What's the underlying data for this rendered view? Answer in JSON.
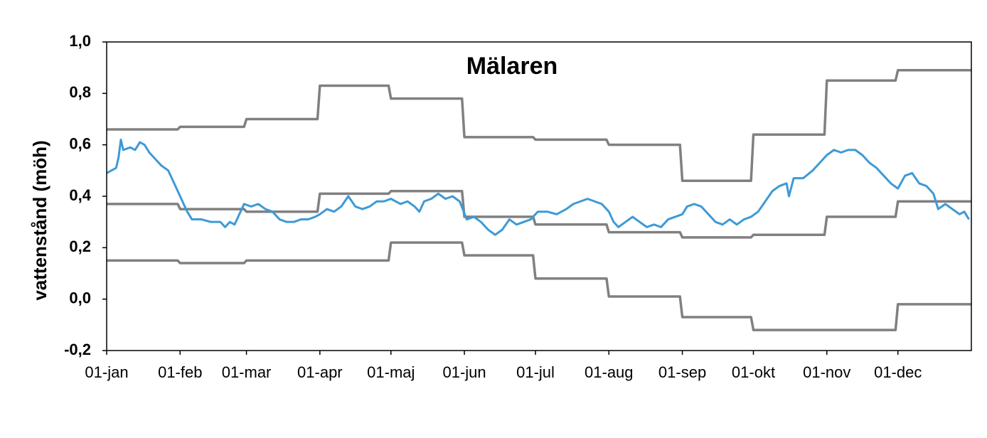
{
  "chart_data": {
    "type": "line",
    "title": "Mälaren",
    "y_label": "vattenstånd (möh)",
    "xlim": [
      0,
      365
    ],
    "ylim": [
      -0.2,
      1.0
    ],
    "xticks": [
      {
        "value": 0,
        "label": "01-jan"
      },
      {
        "value": 31,
        "label": "01-feb"
      },
      {
        "value": 59,
        "label": "01-mar"
      },
      {
        "value": 90,
        "label": "01-apr"
      },
      {
        "value": 120,
        "label": "01-maj"
      },
      {
        "value": 151,
        "label": "01-jun"
      },
      {
        "value": 181,
        "label": "01-jul"
      },
      {
        "value": 212,
        "label": "01-aug"
      },
      {
        "value": 243,
        "label": "01-sep"
      },
      {
        "value": 273,
        "label": "01-okt"
      },
      {
        "value": 304,
        "label": "01-nov"
      },
      {
        "value": 334,
        "label": "01-dec"
      }
    ],
    "yticks": [
      {
        "value": -0.2,
        "label": "-0,2"
      },
      {
        "value": 0,
        "label": "0,0"
      },
      {
        "value": 0.2,
        "label": "0,2"
      },
      {
        "value": 0.4,
        "label": "0,4"
      },
      {
        "value": 0.6,
        "label": "0,6"
      },
      {
        "value": 0.8,
        "label": "0,8"
      },
      {
        "value": 1.0,
        "label": "1,0"
      }
    ],
    "grid": false,
    "series": [
      {
        "color": "#808080",
        "x": [
          0,
          30,
          31,
          58,
          59,
          89,
          90,
          119,
          120,
          150,
          151,
          180,
          181,
          211,
          212,
          242,
          243,
          272,
          273,
          303,
          304,
          333,
          334,
          365
        ],
        "values": [
          0.66,
          0.66,
          0.67,
          0.67,
          0.7,
          0.7,
          0.83,
          0.83,
          0.78,
          0.78,
          0.63,
          0.63,
          0.62,
          0.62,
          0.6,
          0.6,
          0.46,
          0.46,
          0.64,
          0.64,
          0.85,
          0.85,
          0.89,
          0.89
        ]
      },
      {
        "color": "#808080",
        "x": [
          0,
          30,
          31,
          58,
          59,
          89,
          90,
          119,
          120,
          150,
          151,
          180,
          181,
          211,
          212,
          242,
          243,
          272,
          273,
          303,
          304,
          333,
          334,
          365
        ],
        "values": [
          0.37,
          0.37,
          0.35,
          0.35,
          0.34,
          0.34,
          0.41,
          0.41,
          0.42,
          0.42,
          0.32,
          0.32,
          0.29,
          0.29,
          0.26,
          0.26,
          0.24,
          0.24,
          0.25,
          0.25,
          0.32,
          0.32,
          0.38,
          0.38
        ]
      },
      {
        "color": "#808080",
        "x": [
          0,
          30,
          31,
          58,
          59,
          89,
          90,
          119,
          120,
          150,
          151,
          180,
          181,
          211,
          212,
          242,
          243,
          272,
          273,
          303,
          304,
          333,
          334,
          365
        ],
        "values": [
          0.15,
          0.15,
          0.14,
          0.14,
          0.15,
          0.15,
          0.15,
          0.15,
          0.22,
          0.22,
          0.17,
          0.17,
          0.08,
          0.08,
          0.01,
          0.01,
          -0.07,
          -0.07,
          -0.12,
          -0.12,
          -0.12,
          -0.12,
          -0.02,
          -0.02
        ]
      },
      {
        "color": "#3d9ad6",
        "x": [
          0,
          2,
          4,
          5,
          6,
          7,
          10,
          12,
          14,
          16,
          18,
          20,
          23,
          26,
          28,
          30,
          32,
          34,
          36,
          40,
          44,
          48,
          50,
          52,
          54,
          56,
          58,
          61,
          64,
          67,
          70,
          73,
          76,
          79,
          82,
          85,
          88,
          90,
          93,
          96,
          99,
          102,
          105,
          108,
          111,
          114,
          117,
          120,
          124,
          127,
          130,
          132,
          134,
          137,
          140,
          143,
          146,
          149,
          152,
          155,
          158,
          161,
          164,
          167,
          170,
          173,
          176,
          179,
          182,
          186,
          190,
          194,
          197,
          200,
          203,
          206,
          209,
          212,
          214,
          216,
          219,
          222,
          225,
          228,
          231,
          234,
          237,
          240,
          243,
          245,
          248,
          251,
          254,
          257,
          260,
          263,
          266,
          269,
          272,
          275,
          278,
          281,
          284,
          287,
          288,
          290,
          294,
          298,
          301,
          304,
          307,
          310,
          313,
          316,
          319,
          322,
          325,
          328,
          331,
          334,
          337,
          340,
          343,
          346,
          349,
          351,
          354,
          357,
          360,
          362,
          364
        ],
        "values": [
          0.49,
          0.5,
          0.51,
          0.55,
          0.62,
          0.58,
          0.59,
          0.58,
          0.61,
          0.6,
          0.57,
          0.55,
          0.52,
          0.5,
          0.46,
          0.42,
          0.38,
          0.34,
          0.31,
          0.31,
          0.3,
          0.3,
          0.28,
          0.3,
          0.29,
          0.33,
          0.37,
          0.36,
          0.37,
          0.35,
          0.34,
          0.31,
          0.3,
          0.3,
          0.31,
          0.31,
          0.32,
          0.33,
          0.35,
          0.34,
          0.36,
          0.4,
          0.36,
          0.35,
          0.36,
          0.38,
          0.38,
          0.39,
          0.37,
          0.38,
          0.36,
          0.34,
          0.38,
          0.39,
          0.41,
          0.39,
          0.4,
          0.38,
          0.31,
          0.32,
          0.3,
          0.27,
          0.25,
          0.27,
          0.31,
          0.29,
          0.3,
          0.31,
          0.34,
          0.34,
          0.33,
          0.35,
          0.37,
          0.38,
          0.39,
          0.38,
          0.37,
          0.34,
          0.3,
          0.28,
          0.3,
          0.32,
          0.3,
          0.28,
          0.29,
          0.28,
          0.31,
          0.32,
          0.33,
          0.36,
          0.37,
          0.36,
          0.33,
          0.3,
          0.29,
          0.31,
          0.29,
          0.31,
          0.32,
          0.34,
          0.38,
          0.42,
          0.44,
          0.45,
          0.4,
          0.47,
          0.47,
          0.5,
          0.53,
          0.56,
          0.58,
          0.57,
          0.58,
          0.58,
          0.56,
          0.53,
          0.51,
          0.48,
          0.45,
          0.43,
          0.48,
          0.49,
          0.45,
          0.44,
          0.41,
          0.35,
          0.37,
          0.35,
          0.33,
          0.34,
          0.31
        ]
      }
    ]
  }
}
